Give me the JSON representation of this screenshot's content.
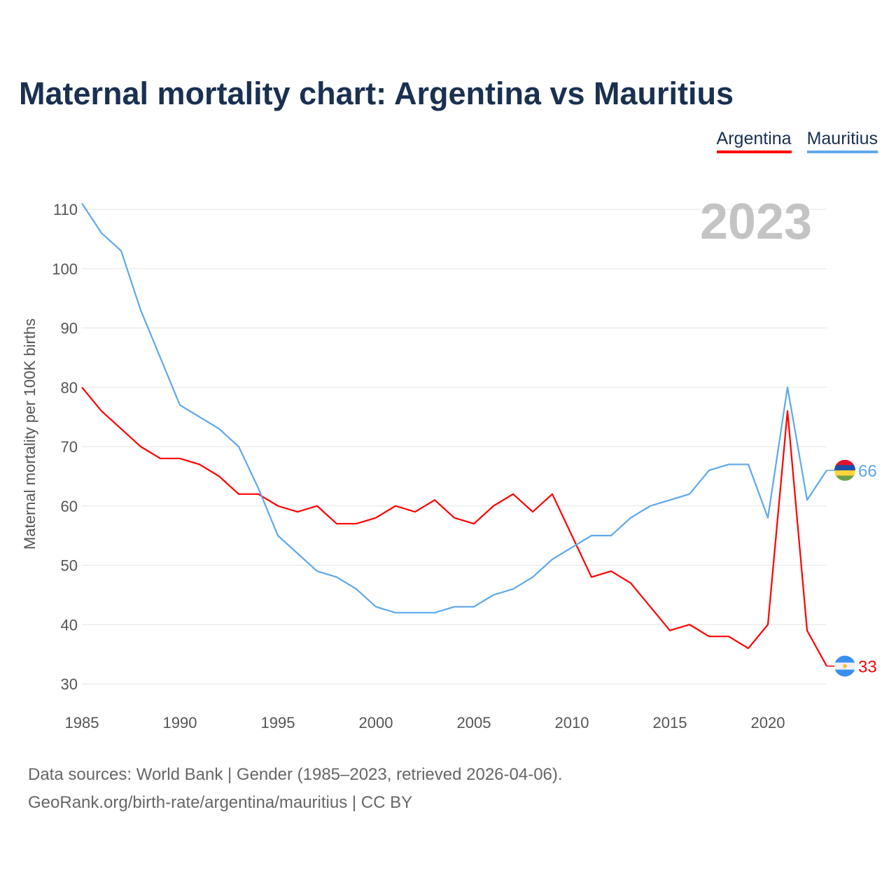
{
  "title": "Maternal mortality chart: Argentina vs Mauritius",
  "legend": [
    "Argentina",
    "Mauritius"
  ],
  "footer": {
    "line1": "Data sources: World Bank | Gender (1985–2023, retrieved 2026-04-06).",
    "line2": "GeoRank.org/birth-rate/argentina/mauritius | CC BY"
  },
  "chart_data": {
    "type": "line",
    "title": "Maternal mortality chart: Argentina vs Mauritius",
    "xlabel": "",
    "ylabel": "Maternal mortality per 100K births",
    "year_label": "2023",
    "xlim": [
      1985,
      2023
    ],
    "ylim": [
      30,
      110
    ],
    "xticks": [
      "1985",
      "1990",
      "1995",
      "2000",
      "2005",
      "2010",
      "2015",
      "2020"
    ],
    "yticks": [
      "30",
      "40",
      "50",
      "60",
      "70",
      "80",
      "90",
      "100",
      "110"
    ],
    "x": [
      1985,
      1986,
      1987,
      1988,
      1989,
      1990,
      1991,
      1992,
      1993,
      1994,
      1995,
      1996,
      1997,
      1998,
      1999,
      2000,
      2001,
      2002,
      2003,
      2004,
      2005,
      2006,
      2007,
      2008,
      2009,
      2010,
      2011,
      2012,
      2013,
      2014,
      2015,
      2016,
      2017,
      2018,
      2019,
      2020,
      2021,
      2022,
      2023
    ],
    "series": [
      {
        "name": "Argentina",
        "color": "#ff0000",
        "end_label": "33",
        "values": [
          80,
          76,
          73,
          70,
          68,
          68,
          67,
          65,
          62,
          62,
          60,
          59,
          60,
          57,
          57,
          58,
          60,
          59,
          61,
          58,
          57,
          60,
          62,
          59,
          62,
          55,
          48,
          49,
          47,
          43,
          39,
          40,
          38,
          38,
          36,
          40,
          76,
          39,
          33
        ]
      },
      {
        "name": "Mauritius",
        "color": "#5ea8ec",
        "end_label": "66",
        "values": [
          111,
          106,
          103,
          93,
          85,
          77,
          75,
          73,
          70,
          63,
          55,
          52,
          49,
          48,
          46,
          43,
          42,
          42,
          42,
          43,
          43,
          45,
          46,
          48,
          51,
          53,
          55,
          55,
          58,
          60,
          61,
          62,
          66,
          67,
          67,
          58,
          80,
          61,
          66
        ]
      }
    ]
  }
}
